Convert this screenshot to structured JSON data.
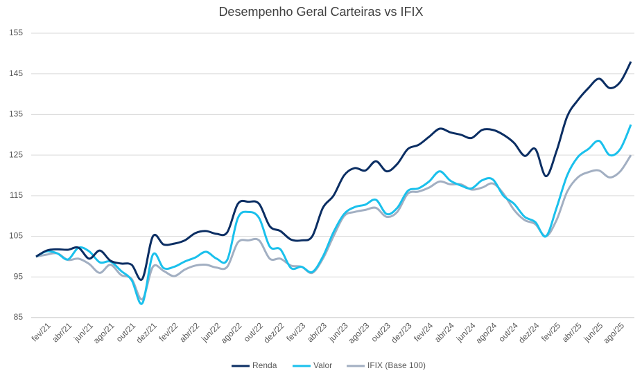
{
  "chart_data": {
    "type": "line",
    "title": "Desempenho Geral Carteiras vs IFIX",
    "categories": [
      null,
      "fev/21",
      null,
      "abr/21",
      null,
      "jun/21",
      null,
      "ago/21",
      null,
      "out/21",
      null,
      "dez/21",
      null,
      "fev/22",
      null,
      "abr/22",
      null,
      "jun/22",
      null,
      "ago/22",
      null,
      "out/22",
      null,
      "dez/22",
      null,
      "fev/23",
      null,
      "abr/23",
      null,
      "jun/23",
      null,
      "ago/23",
      null,
      "out/23",
      null,
      "dez/23",
      null,
      "fev/24",
      null,
      "abr/24",
      null,
      "jun/24",
      null,
      "ago/24",
      null,
      "out/24",
      null,
      "dez/24",
      null,
      "fev/25",
      null,
      "abr/25",
      null,
      "jun/25",
      null,
      "ago/25",
      null
    ],
    "series": [
      {
        "name": "Renda",
        "color": "#0b2e63",
        "values": [
          100,
          101.5,
          101.8,
          101.7,
          102.2,
          99.5,
          101.5,
          99,
          98.3,
          98,
          94.5,
          105,
          103,
          103.2,
          104,
          105.8,
          106.3,
          105.6,
          106,
          113,
          113.5,
          113,
          107.5,
          106.3,
          104.2,
          104,
          105,
          112,
          115,
          120,
          121.8,
          121.2,
          123.5,
          121,
          122.8,
          126.5,
          127.5,
          129.5,
          131.5,
          130.6,
          130,
          129.2,
          131.2,
          131.2,
          130,
          128,
          124.8,
          126.5,
          119.8,
          126,
          134.5,
          138.5,
          141.5,
          143.8,
          141.5,
          143,
          148
        ]
      },
      {
        "name": "Valor",
        "color": "#1ac0ec",
        "values": [
          100,
          101.3,
          100.8,
          99.3,
          102.2,
          101.3,
          98.6,
          98.8,
          96.5,
          94.2,
          88.5,
          100.5,
          97.2,
          97.5,
          98.8,
          99.8,
          101.2,
          99.5,
          99.2,
          109.5,
          111,
          109.5,
          102.5,
          101.8,
          97.2,
          97.5,
          96.2,
          100,
          106,
          110.5,
          112.2,
          112.8,
          114,
          110.5,
          112,
          116.2,
          116.8,
          118.5,
          121,
          118.7,
          117.5,
          116.8,
          118.8,
          119,
          115,
          113,
          109.8,
          108.5,
          105,
          112,
          120,
          124.5,
          126.5,
          128.5,
          125,
          126.5,
          132.5
        ]
      },
      {
        "name": "IFIX (Base 100)",
        "color": "#a2afc2",
        "values": [
          100,
          100.5,
          100.8,
          99.2,
          99.5,
          98.2,
          96,
          98,
          95.5,
          94.5,
          89.5,
          97.5,
          96.5,
          95.2,
          96.8,
          97.8,
          98,
          97.3,
          97.5,
          103.5,
          104,
          104,
          99.5,
          99.5,
          97.8,
          97.5,
          96,
          99.5,
          105,
          110,
          111,
          111.5,
          112,
          109.8,
          111,
          115.5,
          116,
          117,
          118.5,
          117.8,
          117.8,
          116.5,
          117,
          118,
          115.5,
          111.5,
          109,
          108,
          105,
          109,
          116,
          119.5,
          120.8,
          121.2,
          119.5,
          121,
          125
        ]
      }
    ],
    "ylim": [
      85,
      155
    ],
    "yticks": [
      85,
      95,
      105,
      115,
      125,
      135,
      145,
      155
    ],
    "grid": true,
    "legend": "bottom"
  }
}
